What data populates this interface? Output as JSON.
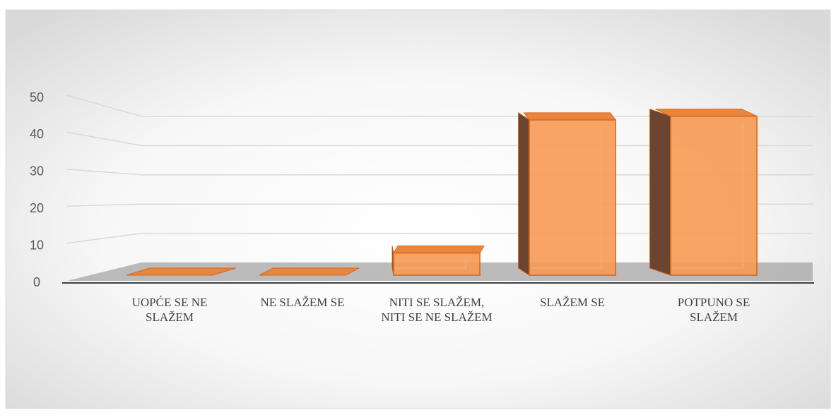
{
  "chart_data": {
    "type": "bar3d",
    "categories": [
      "UOPĆE SE NE SLAŽEM",
      "NE SLAŽEM SE",
      "NITI SE SLAŽEM, NITI SE NE SLAŽEM",
      "SLAŽEM SE",
      "POTPUNO SE SLAŽEM"
    ],
    "values": [
      0,
      0,
      6,
      42,
      43
    ],
    "color": "#f79a55",
    "ylim": [
      0,
      50
    ],
    "yticks": [
      0,
      10,
      20,
      30,
      40,
      50
    ],
    "grid": true
  }
}
